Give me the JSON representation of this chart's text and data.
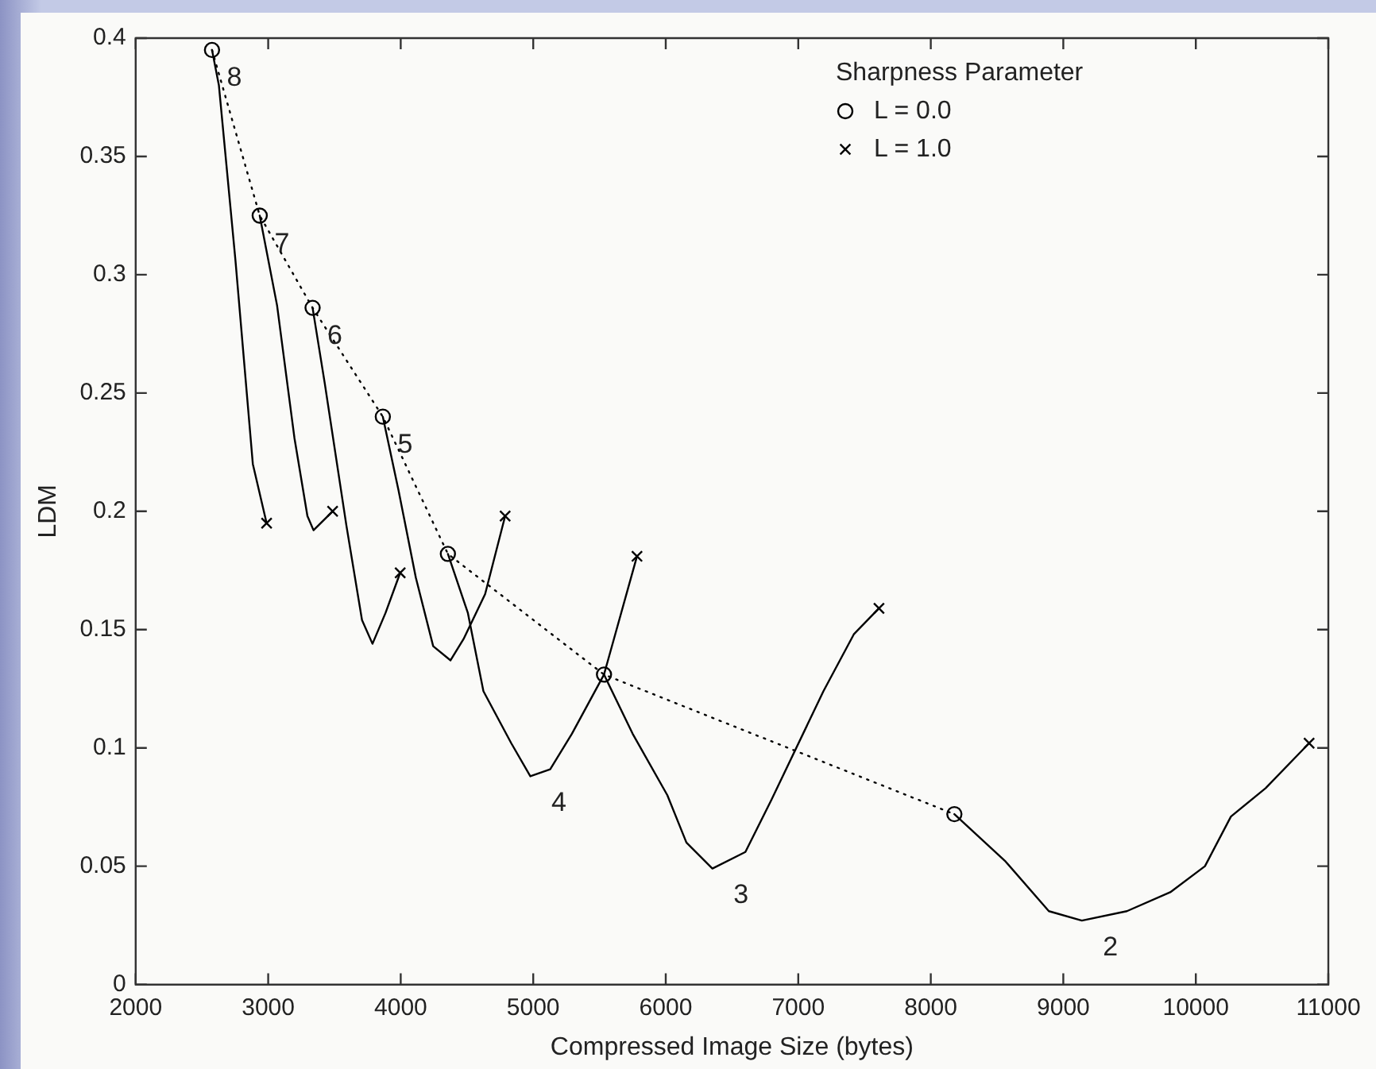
{
  "chart_data": {
    "type": "line",
    "xlabel": "Compressed Image Size (bytes)",
    "ylabel": "LDM",
    "legend_title": "Sharpness Parameter",
    "legend": "top right",
    "xlim": [
      2000,
      11000
    ],
    "xticks": [
      2000,
      3000,
      4000,
      5000,
      6000,
      7000,
      8000,
      9000,
      10000,
      11000
    ],
    "ylim": [
      0,
      0.4
    ],
    "yticks": [
      0,
      0.05,
      0.1,
      0.15,
      0.2,
      0.25,
      0.3,
      0.35,
      0.4
    ],
    "series": [
      {
        "name": "L = 0.0",
        "type": "line",
        "line_style": "dotted",
        "marker": "circle",
        "color": "#000000",
        "x": [
          2576,
          2936,
          3335,
          3865,
          4356,
          5534,
          8178
        ],
        "values": [
          0.395,
          0.325,
          0.286,
          0.24,
          0.182,
          0.131,
          0.072
        ]
      },
      {
        "name": "L = 1.0",
        "type": "scatter",
        "marker": "cross",
        "color": "#000000",
        "x": [
          2988,
          3486,
          3996,
          4788,
          5783,
          7609,
          10855
        ],
        "values": [
          0.195,
          0.2,
          0.174,
          0.198,
          0.181,
          0.159,
          0.102
        ]
      },
      {
        "name": "8",
        "type": "line",
        "line_style": "solid",
        "marker": "none",
        "color": "#000000",
        "x": [
          2576,
          2628,
          2753,
          2884,
          2988
        ],
        "values": [
          0.395,
          0.38,
          0.306,
          0.22,
          0.195
        ]
      },
      {
        "name": "7",
        "type": "line",
        "line_style": "solid",
        "marker": "none",
        "color": "#000000",
        "x": [
          2936,
          3067,
          3198,
          3296,
          3342,
          3486
        ],
        "values": [
          0.325,
          0.287,
          0.231,
          0.198,
          0.192,
          0.2
        ]
      },
      {
        "name": "6",
        "type": "line",
        "line_style": "solid",
        "marker": "none",
        "color": "#000000",
        "x": [
          3335,
          3427,
          3590,
          3708,
          3787,
          3885,
          3996
        ],
        "values": [
          0.286,
          0.254,
          0.194,
          0.154,
          0.144,
          0.157,
          0.174
        ]
      },
      {
        "name": "5",
        "type": "line",
        "line_style": "solid",
        "marker": "none",
        "color": "#000000",
        "x": [
          3865,
          3983,
          4114,
          4245,
          4376,
          4474,
          4637,
          4788
        ],
        "values": [
          0.24,
          0.209,
          0.172,
          0.143,
          0.137,
          0.146,
          0.165,
          0.198
        ]
      },
      {
        "name": "4",
        "type": "line",
        "line_style": "solid",
        "marker": "none",
        "color": "#000000",
        "x": [
          4356,
          4507,
          4624,
          4834,
          4978,
          5128,
          5292,
          5534,
          5783
        ],
        "values": [
          0.182,
          0.157,
          0.124,
          0.102,
          0.088,
          0.091,
          0.106,
          0.131,
          0.181
        ]
      },
      {
        "name": "3",
        "type": "line",
        "line_style": "solid",
        "marker": "none",
        "color": "#000000",
        "x": [
          5534,
          5750,
          6012,
          6156,
          6352,
          6601,
          6797,
          7190,
          7419,
          7609
        ],
        "values": [
          0.131,
          0.106,
          0.08,
          0.06,
          0.049,
          0.056,
          0.078,
          0.124,
          0.148,
          0.159
        ]
      },
      {
        "name": "2",
        "type": "line",
        "line_style": "solid",
        "marker": "none",
        "color": "#000000",
        "x": [
          8178,
          8564,
          8891,
          9140,
          9480,
          9807,
          10069,
          10265,
          10527,
          10855
        ],
        "values": [
          0.072,
          0.052,
          0.031,
          0.027,
          0.031,
          0.039,
          0.05,
          0.071,
          0.083,
          0.102
        ]
      }
    ]
  }
}
